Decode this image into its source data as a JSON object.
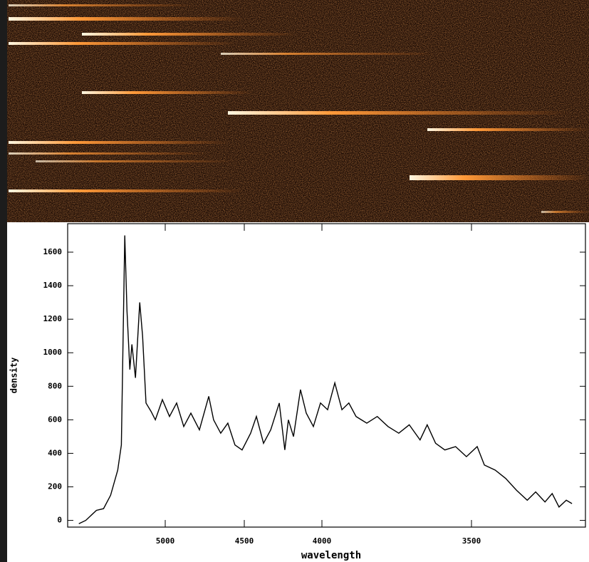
{
  "chart_data": {
    "type": "line",
    "x_label": "wavelength",
    "y_label": "density",
    "xlim": [
      5620,
      3120
    ],
    "ylim": [
      -40,
      1770
    ],
    "xticks": [
      5000,
      4500,
      4000,
      3500
    ],
    "yticks": [
      0,
      200,
      400,
      600,
      800,
      1000,
      1200,
      1400,
      1600
    ],
    "series": [
      {
        "color": "#000000",
        "x": [
          5549,
          5505,
          5437,
          5392,
          5347,
          5302,
          5279,
          5257,
          5243,
          5225,
          5212,
          5189,
          5162,
          5144,
          5122,
          5090,
          5063,
          5018,
          4973,
          4928,
          4883,
          4838,
          4784,
          4725,
          4694,
          4649,
          4604,
          4559,
          4514,
          4459,
          4422,
          4376,
          4330,
          4275,
          4239,
          4216,
          4183,
          4138,
          4101,
          4055,
          4009,
          3981,
          3957,
          3933,
          3910,
          3886,
          3850,
          3815,
          3779,
          3743,
          3708,
          3672,
          3648,
          3620,
          3589,
          3553,
          3517,
          3481,
          3457,
          3421,
          3386,
          3350,
          3314,
          3286,
          3255,
          3231,
          3208,
          3184,
          3165
        ],
        "values": [
          -20,
          0,
          60,
          70,
          150,
          300,
          450,
          1700,
          1250,
          900,
          1050,
          850,
          1300,
          1100,
          700,
          650,
          600,
          720,
          620,
          700,
          560,
          640,
          540,
          740,
          600,
          520,
          580,
          450,
          420,
          520,
          620,
          460,
          540,
          700,
          420,
          600,
          500,
          780,
          640,
          560,
          700,
          660,
          820,
          660,
          700,
          620,
          580,
          620,
          560,
          520,
          570,
          480,
          570,
          460,
          420,
          440,
          380,
          440,
          330,
          300,
          250,
          180,
          120,
          170,
          110,
          160,
          80,
          120,
          100
        ]
      }
    ]
  }
}
